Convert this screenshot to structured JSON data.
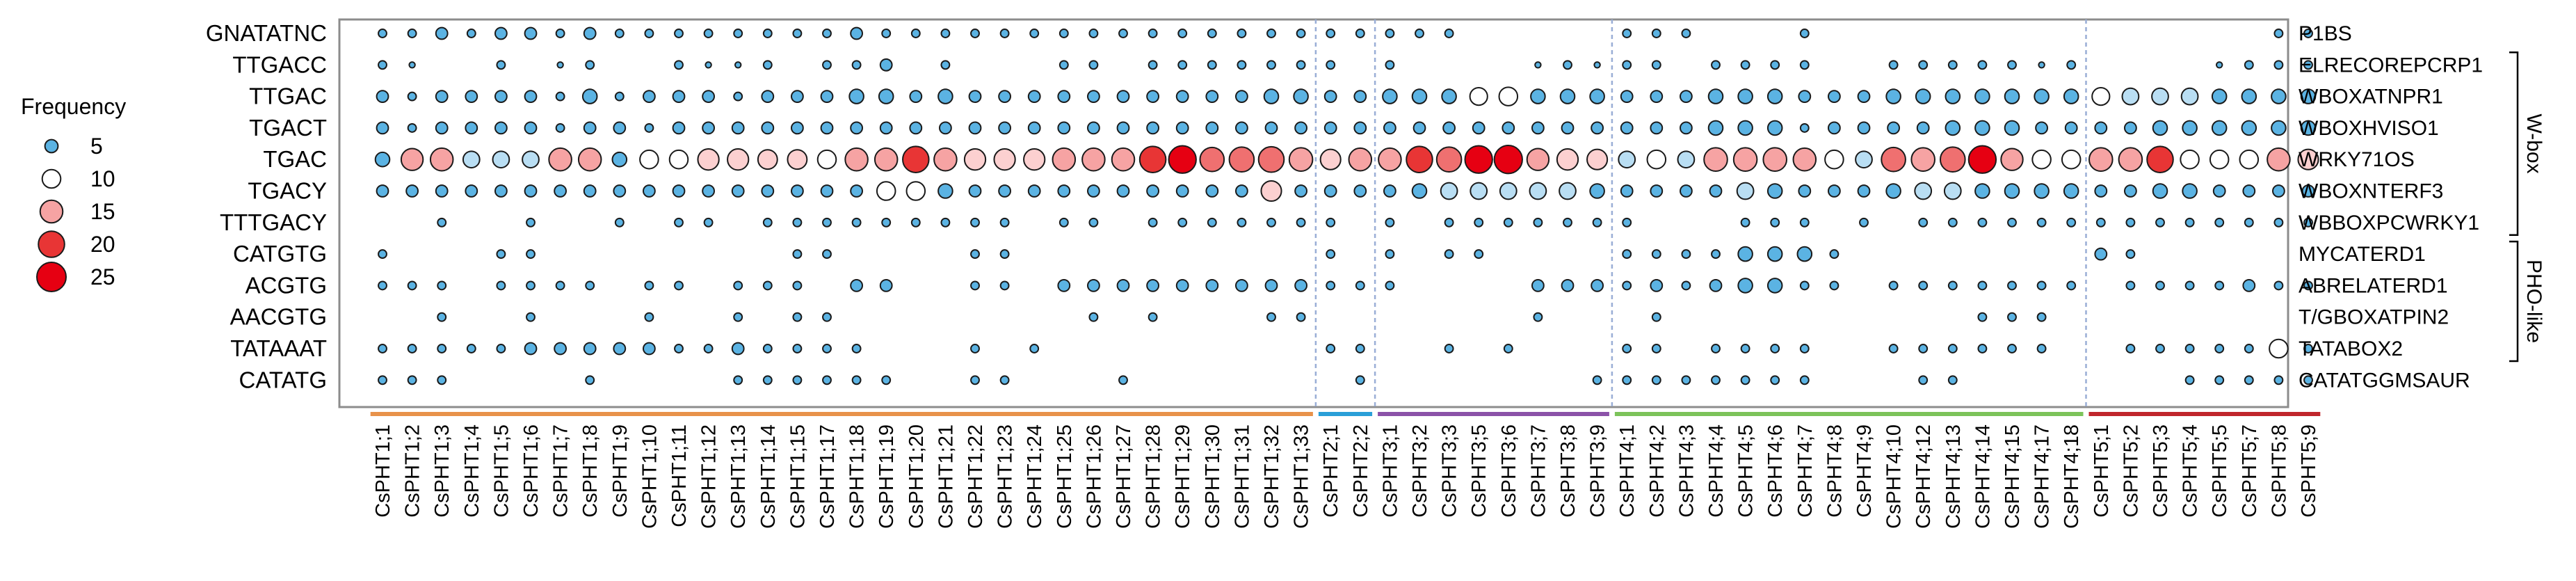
{
  "chart_data": {
    "type": "bubble-matrix",
    "legend": {
      "title": "Frequency",
      "items": [
        {
          "label": "5",
          "value": 5
        },
        {
          "label": "10",
          "value": 10
        },
        {
          "label": "15",
          "value": 15
        },
        {
          "label": "20",
          "value": 20
        },
        {
          "label": "25",
          "value": 25
        }
      ],
      "placement": "left"
    },
    "rows": [
      "GNATATNC",
      "TTGACC",
      "TTGAC",
      "TGACT",
      "TGAC",
      "TGACY",
      "TTTGACY",
      "CATGTG",
      "ACGTG",
      "AACGTG",
      "TATAAAT",
      "CATATG"
    ],
    "right_labels": [
      "P1BS",
      "ELRECOREPCRP1",
      "WBOXATNPR1",
      "WBOXHVISO1",
      "WRKY71OS",
      "WBOXNTERF3",
      "WBBOXPCWRKY1",
      "MYCATERD1",
      "ABRELATERD1",
      "T/GBOXATPIN2",
      "TATABOX2",
      "CATATGGMSAUR"
    ],
    "brackets": [
      {
        "label": "W-box",
        "from_row": 1,
        "to_row": 6
      },
      {
        "label": "PHO-like",
        "from_row": 7,
        "to_row": 10
      }
    ],
    "columns": [
      "CsPHT1;1",
      "CsPHT1;2",
      "CsPHT1;3",
      "CsPHT1;4",
      "CsPHT1;5",
      "CsPHT1;6",
      "CsPHT1;7",
      "CsPHT1;8",
      "CsPHT1;9",
      "CsPHT1;10",
      "CsPHT1;11",
      "CsPHT1;12",
      "CsPHT1;13",
      "CsPHT1;14",
      "CsPHT1;15",
      "CsPHT1;17",
      "CsPHT1;18",
      "CsPHT1;19",
      "CsPHT1;20",
      "CsPHT1;21",
      "CsPHT1;22",
      "CsPHT1;23",
      "CsPHT1;24",
      "CsPHT1;25",
      "CsPHT1;26",
      "CsPHT1;27",
      "CsPHT1;28",
      "CsPHT1;29",
      "CsPHT1;30",
      "CsPHT1;31",
      "CsPHT1;32",
      "CsPHT1;33",
      "CsPHT2;1",
      "CsPHT2;2",
      "CsPHT3;1",
      "CsPHT3;2",
      "CsPHT3;3",
      "CsPHT3;5",
      "CsPHT3;6",
      "CsPHT3;7",
      "CsPHT3;8",
      "CsPHT3;9",
      "CsPHT4;1",
      "CsPHT4;2",
      "CsPHT4;3",
      "CsPHT4;4",
      "CsPHT4;5",
      "CsPHT4;6",
      "CsPHT4;7",
      "CsPHT4;8",
      "CsPHT4;9",
      "CsPHT4;10",
      "CsPHT4;12",
      "CsPHT4;13",
      "CsPHT4;14",
      "CsPHT4;15",
      "CsPHT4;17",
      "CsPHT4;18",
      "CsPHT5;1",
      "CsPHT5;2",
      "CsPHT5;3",
      "CsPHT5;4",
      "CsPHT5;5",
      "CsPHT5;7",
      "CsPHT5;8",
      "CsPHT5;9"
    ],
    "groups": [
      {
        "start": 0,
        "end": 31,
        "color": "#e8924a"
      },
      {
        "start": 32,
        "end": 33,
        "color": "#2a9fd8"
      },
      {
        "start": 34,
        "end": 41,
        "color": "#8b52a8"
      },
      {
        "start": 42,
        "end": 57,
        "color": "#7cc35a"
      },
      {
        "start": 58,
        "end": 65,
        "color": "#c0262c"
      }
    ],
    "values": [
      [
        2,
        2,
        4,
        2,
        4,
        4,
        2,
        4,
        2,
        2,
        2,
        2,
        2,
        2,
        2,
        2,
        4,
        2,
        2,
        2,
        2,
        2,
        2,
        2,
        2,
        2,
        2,
        2,
        2,
        2,
        2,
        2,
        2,
        2,
        2,
        2,
        2,
        0,
        0,
        0,
        0,
        0,
        2,
        2,
        2,
        0,
        0,
        0,
        2,
        0,
        0,
        0,
        0,
        0,
        0,
        0,
        0,
        0,
        0,
        0,
        0,
        0,
        0,
        0,
        2,
        2
      ],
      [
        2,
        1,
        0,
        0,
        2,
        0,
        1,
        2,
        0,
        0,
        2,
        1,
        1,
        2,
        0,
        2,
        2,
        4,
        0,
        2,
        0,
        0,
        0,
        2,
        2,
        0,
        2,
        2,
        2,
        2,
        2,
        2,
        2,
        0,
        2,
        0,
        0,
        0,
        0,
        1,
        2,
        1,
        2,
        2,
        0,
        2,
        2,
        2,
        2,
        0,
        0,
        2,
        2,
        2,
        2,
        2,
        1,
        2,
        0,
        0,
        0,
        0,
        1,
        2,
        2,
        2
      ],
      [
        4,
        2,
        4,
        4,
        4,
        4,
        2,
        6,
        2,
        4,
        4,
        4,
        2,
        4,
        4,
        4,
        6,
        6,
        4,
        6,
        4,
        4,
        4,
        4,
        4,
        4,
        4,
        4,
        4,
        4,
        6,
        6,
        4,
        4,
        6,
        6,
        6,
        9,
        10,
        6,
        6,
        6,
        4,
        4,
        4,
        6,
        6,
        6,
        4,
        4,
        4,
        6,
        6,
        6,
        6,
        6,
        6,
        6,
        9,
        8,
        8,
        8,
        6,
        6,
        6,
        6
      ],
      [
        4,
        2,
        4,
        4,
        4,
        4,
        2,
        4,
        4,
        2,
        4,
        4,
        4,
        4,
        4,
        4,
        4,
        4,
        4,
        4,
        4,
        4,
        4,
        4,
        4,
        4,
        4,
        4,
        4,
        4,
        4,
        4,
        4,
        4,
        4,
        4,
        4,
        4,
        4,
        4,
        4,
        4,
        4,
        4,
        4,
        6,
        6,
        6,
        2,
        4,
        4,
        4,
        4,
        6,
        6,
        6,
        4,
        4,
        4,
        4,
        6,
        6,
        6,
        6,
        6,
        6
      ],
      [
        6,
        14,
        15,
        8,
        8,
        8,
        15,
        15,
        6,
        10,
        10,
        13,
        13,
        11,
        11,
        10,
        15,
        15,
        20,
        15,
        13,
        13,
        13,
        15,
        15,
        15,
        20,
        22,
        17,
        18,
        19,
        16,
        12,
        15,
        15,
        20,
        18,
        22,
        23,
        14,
        13,
        12,
        8,
        10,
        8,
        16,
        16,
        16,
        15,
        10,
        8,
        17,
        16,
        18,
        22,
        14,
        10,
        10,
        16,
        16,
        20,
        10,
        10,
        10,
        15,
        12
      ],
      [
        4,
        4,
        4,
        4,
        4,
        4,
        4,
        4,
        4,
        4,
        4,
        4,
        4,
        4,
        4,
        4,
        4,
        10,
        10,
        6,
        4,
        4,
        4,
        4,
        4,
        4,
        4,
        4,
        4,
        4,
        12,
        4,
        4,
        4,
        4,
        6,
        8,
        8,
        8,
        8,
        8,
        6,
        4,
        4,
        4,
        4,
        8,
        6,
        4,
        4,
        4,
        6,
        8,
        8,
        6,
        6,
        6,
        6,
        4,
        4,
        6,
        6,
        4,
        4,
        4,
        4
      ],
      [
        0,
        0,
        2,
        0,
        0,
        2,
        0,
        0,
        2,
        0,
        2,
        2,
        0,
        2,
        2,
        2,
        2,
        2,
        2,
        2,
        2,
        2,
        0,
        2,
        2,
        0,
        2,
        2,
        2,
        2,
        2,
        2,
        2,
        0,
        2,
        0,
        2,
        2,
        2,
        2,
        2,
        2,
        2,
        0,
        0,
        0,
        2,
        2,
        2,
        0,
        2,
        0,
        2,
        2,
        2,
        2,
        2,
        2,
        2,
        2,
        2,
        2,
        2,
        2,
        2,
        2
      ],
      [
        2,
        0,
        0,
        0,
        2,
        2,
        0,
        0,
        0,
        0,
        0,
        0,
        0,
        0,
        2,
        2,
        0,
        0,
        0,
        0,
        2,
        2,
        0,
        0,
        0,
        0,
        0,
        0,
        0,
        0,
        0,
        0,
        2,
        0,
        2,
        0,
        2,
        2,
        0,
        0,
        0,
        0,
        2,
        2,
        2,
        2,
        6,
        6,
        6,
        2,
        0,
        0,
        0,
        0,
        0,
        0,
        0,
        0,
        4,
        2,
        0,
        0,
        0,
        0,
        0,
        0
      ],
      [
        2,
        2,
        2,
        0,
        2,
        2,
        2,
        2,
        0,
        2,
        2,
        0,
        2,
        2,
        2,
        0,
        4,
        4,
        0,
        0,
        2,
        2,
        0,
        4,
        4,
        4,
        4,
        4,
        4,
        4,
        4,
        4,
        2,
        2,
        2,
        0,
        0,
        0,
        0,
        4,
        4,
        4,
        2,
        4,
        2,
        4,
        6,
        6,
        2,
        2,
        0,
        2,
        2,
        2,
        2,
        2,
        2,
        2,
        0,
        2,
        2,
        2,
        2,
        4,
        2,
        2
      ],
      [
        0,
        0,
        2,
        0,
        0,
        2,
        0,
        0,
        0,
        2,
        0,
        0,
        2,
        0,
        2,
        2,
        0,
        0,
        0,
        0,
        0,
        0,
        0,
        0,
        2,
        0,
        2,
        0,
        0,
        0,
        2,
        2,
        0,
        0,
        0,
        0,
        0,
        0,
        0,
        2,
        0,
        0,
        0,
        2,
        0,
        0,
        0,
        0,
        0,
        0,
        0,
        0,
        0,
        0,
        2,
        2,
        2,
        0,
        0,
        0,
        0,
        0,
        0,
        0,
        0,
        0
      ],
      [
        2,
        2,
        2,
        2,
        2,
        4,
        4,
        4,
        4,
        4,
        2,
        2,
        4,
        2,
        2,
        2,
        2,
        0,
        0,
        0,
        2,
        0,
        2,
        0,
        0,
        0,
        0,
        0,
        0,
        0,
        0,
        0,
        2,
        2,
        0,
        0,
        2,
        0,
        2,
        0,
        0,
        0,
        2,
        2,
        0,
        2,
        2,
        2,
        2,
        0,
        0,
        2,
        2,
        2,
        2,
        2,
        2,
        0,
        0,
        2,
        2,
        2,
        2,
        2,
        10,
        2
      ],
      [
        2,
        2,
        2,
        0,
        0,
        0,
        0,
        2,
        0,
        0,
        0,
        0,
        2,
        2,
        2,
        2,
        2,
        2,
        0,
        0,
        2,
        2,
        0,
        0,
        0,
        2,
        0,
        0,
        0,
        0,
        0,
        0,
        0,
        2,
        0,
        0,
        0,
        0,
        0,
        0,
        0,
        2,
        2,
        2,
        2,
        2,
        2,
        2,
        2,
        0,
        0,
        0,
        2,
        2,
        0,
        0,
        0,
        0,
        0,
        0,
        0,
        2,
        2,
        2,
        2,
        2
      ]
    ]
  }
}
